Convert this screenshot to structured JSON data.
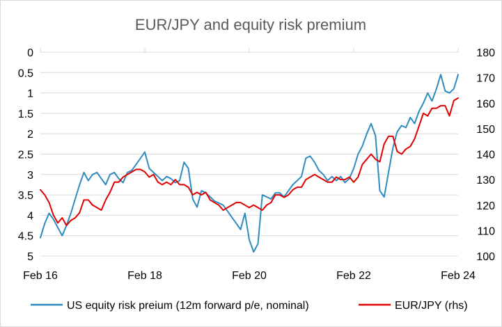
{
  "chart_data": {
    "type": "line",
    "title": "EUR/JPY and equity risk premium",
    "x_ticks": [
      "Feb 16",
      "Feb 18",
      "Feb 20",
      "Feb 22",
      "Feb 24"
    ],
    "x_range": [
      "2016-02",
      "2024-02"
    ],
    "y_left": {
      "ticks": [
        "0",
        "0.5",
        "1",
        "1.5",
        "2",
        "2.5",
        "3",
        "3.5",
        "4",
        "4.5",
        "5"
      ],
      "range": [
        0,
        5
      ],
      "inverted": true
    },
    "y_right": {
      "ticks": [
        "180",
        "170",
        "160",
        "150",
        "140",
        "130",
        "120",
        "110",
        "100"
      ],
      "range": [
        100,
        180
      ]
    },
    "grid": "horizontal",
    "legend_position": "bottom",
    "colors": {
      "erp": "#2e8bbf",
      "eurjpy": "#e00000",
      "grid": "#d9d9d9",
      "title": "#595959"
    },
    "series": [
      {
        "name": "US equity risk preium (12m forward p/e, nominal)",
        "axis": "left",
        "x": [
          "2016-02",
          "2016-03",
          "2016-04",
          "2016-05",
          "2016-06",
          "2016-07",
          "2016-08",
          "2016-09",
          "2016-10",
          "2016-11",
          "2016-12",
          "2017-01",
          "2017-02",
          "2017-03",
          "2017-04",
          "2017-05",
          "2017-06",
          "2017-07",
          "2017-08",
          "2017-09",
          "2017-10",
          "2017-11",
          "2017-12",
          "2018-01",
          "2018-02",
          "2018-03",
          "2018-04",
          "2018-05",
          "2018-06",
          "2018-07",
          "2018-08",
          "2018-09",
          "2018-10",
          "2018-11",
          "2018-12",
          "2019-01",
          "2019-02",
          "2019-03",
          "2019-04",
          "2019-05",
          "2019-06",
          "2019-07",
          "2019-08",
          "2019-09",
          "2019-10",
          "2019-11",
          "2019-12",
          "2020-01",
          "2020-02",
          "2020-03",
          "2020-04",
          "2020-05",
          "2020-06",
          "2020-07",
          "2020-08",
          "2020-09",
          "2020-10",
          "2020-11",
          "2020-12",
          "2021-01",
          "2021-02",
          "2021-03",
          "2021-04",
          "2021-05",
          "2021-06",
          "2021-07",
          "2021-08",
          "2021-09",
          "2021-10",
          "2021-11",
          "2021-12",
          "2022-01",
          "2022-02",
          "2022-03",
          "2022-04",
          "2022-05",
          "2022-06",
          "2022-07",
          "2022-08",
          "2022-09",
          "2022-10",
          "2022-11",
          "2022-12",
          "2023-01",
          "2023-02",
          "2023-03",
          "2023-04",
          "2023-05",
          "2023-06",
          "2023-07",
          "2023-08",
          "2023-09",
          "2023-10",
          "2023-11",
          "2023-12",
          "2024-01",
          "2024-02"
        ],
        "values": [
          4.55,
          4.2,
          3.95,
          4.1,
          4.3,
          4.5,
          4.25,
          3.95,
          3.6,
          3.25,
          2.95,
          3.15,
          3.0,
          2.95,
          3.1,
          3.25,
          3.0,
          2.95,
          3.1,
          3.2,
          2.95,
          2.9,
          2.75,
          2.6,
          2.45,
          2.85,
          2.95,
          3.05,
          3.15,
          3.05,
          3.1,
          3.2,
          3.15,
          2.7,
          2.85,
          3.6,
          3.8,
          3.4,
          3.45,
          3.55,
          3.65,
          3.7,
          3.75,
          3.9,
          4.05,
          4.2,
          4.35,
          3.95,
          4.6,
          4.9,
          4.7,
          3.5,
          3.55,
          3.6,
          3.45,
          3.45,
          3.55,
          3.4,
          3.25,
          3.15,
          3.05,
          2.6,
          2.55,
          2.7,
          2.9,
          3.0,
          3.15,
          3.05,
          3.15,
          3.05,
          3.2,
          3.1,
          2.85,
          2.5,
          2.3,
          2.0,
          1.75,
          2.05,
          3.4,
          3.55,
          2.95,
          2.35,
          1.95,
          1.8,
          1.85,
          1.6,
          1.75,
          1.45,
          1.25,
          1.0,
          1.2,
          0.9,
          0.55,
          0.95,
          1.0,
          0.9,
          0.55
        ]
      },
      {
        "name": "EUR/JPY (rhs)",
        "axis": "right",
        "x": [
          "2016-02",
          "2016-03",
          "2016-04",
          "2016-05",
          "2016-06",
          "2016-07",
          "2016-08",
          "2016-09",
          "2016-10",
          "2016-11",
          "2016-12",
          "2017-01",
          "2017-02",
          "2017-03",
          "2017-04",
          "2017-05",
          "2017-06",
          "2017-07",
          "2017-08",
          "2017-09",
          "2017-10",
          "2017-11",
          "2017-12",
          "2018-01",
          "2018-02",
          "2018-03",
          "2018-04",
          "2018-05",
          "2018-06",
          "2018-07",
          "2018-08",
          "2018-09",
          "2018-10",
          "2018-11",
          "2018-12",
          "2019-01",
          "2019-02",
          "2019-03",
          "2019-04",
          "2019-05",
          "2019-06",
          "2019-07",
          "2019-08",
          "2019-09",
          "2019-10",
          "2019-11",
          "2019-12",
          "2020-01",
          "2020-02",
          "2020-03",
          "2020-04",
          "2020-05",
          "2020-06",
          "2020-07",
          "2020-08",
          "2020-09",
          "2020-10",
          "2020-11",
          "2020-12",
          "2021-01",
          "2021-02",
          "2021-03",
          "2021-04",
          "2021-05",
          "2021-06",
          "2021-07",
          "2021-08",
          "2021-09",
          "2021-10",
          "2021-11",
          "2021-12",
          "2022-01",
          "2022-02",
          "2022-03",
          "2022-04",
          "2022-05",
          "2022-06",
          "2022-07",
          "2022-08",
          "2022-09",
          "2022-10",
          "2022-11",
          "2022-12",
          "2023-01",
          "2023-02",
          "2023-03",
          "2023-04",
          "2023-05",
          "2023-06",
          "2023-07",
          "2023-08",
          "2023-09",
          "2023-10",
          "2023-11",
          "2023-12",
          "2024-01",
          "2024-02"
        ],
        "values": [
          126,
          124,
          121,
          116,
          113,
          115,
          112,
          114,
          115,
          117,
          122,
          122,
          120,
          119,
          118,
          122,
          125,
          129,
          129,
          131,
          132,
          133,
          134,
          134,
          133,
          131,
          132,
          129,
          128,
          129,
          128,
          130,
          128,
          128,
          127,
          124,
          125,
          124,
          125,
          122,
          121,
          120,
          118,
          119,
          120,
          121,
          121,
          120,
          119,
          120,
          119,
          118,
          120,
          121,
          124,
          124,
          123,
          124,
          126,
          127,
          127,
          130,
          131,
          132,
          131,
          130,
          129,
          129,
          131,
          130,
          130,
          131,
          129,
          131,
          136,
          138,
          140,
          138,
          137,
          144,
          147,
          147,
          141,
          140,
          142,
          143,
          146,
          151,
          156,
          155,
          158,
          158,
          159,
          159,
          155,
          161,
          162
        ]
      }
    ]
  }
}
